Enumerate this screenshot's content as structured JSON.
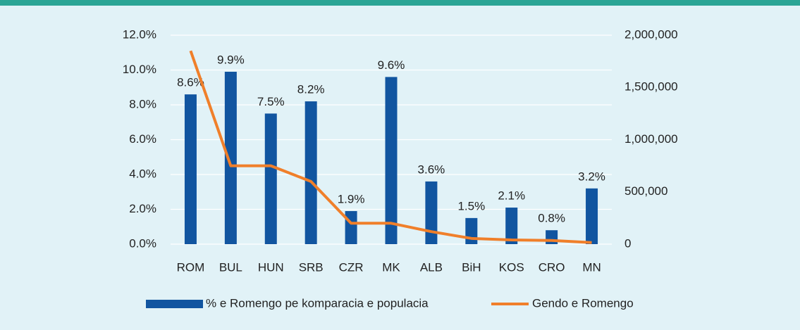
{
  "chart_data": {
    "type": "bar_line",
    "categories": [
      "ROM",
      "BUL",
      "HUN",
      "SRB",
      "CZR",
      "MK",
      "ALB",
      "BiH",
      "KOS",
      "CRO",
      "MN"
    ],
    "series": [
      {
        "name": "% e Romengo pe komparacia e populacia",
        "type": "bar",
        "color": "#1155a0",
        "values": [
          8.6,
          9.9,
          7.5,
          8.2,
          1.9,
          9.6,
          3.6,
          1.5,
          2.1,
          0.8,
          3.2
        ],
        "value_labels": [
          "8.6%",
          "9.9%",
          "7.5%",
          "8.2%",
          "1.9%",
          "9.6%",
          "3.6%",
          "1.5%",
          "2.1%",
          "0.8%",
          "3.2%"
        ]
      },
      {
        "name": "Gendo e Romengo",
        "type": "line",
        "axis": "y2",
        "color": "#f07f2a",
        "values": [
          1850000,
          750000,
          750000,
          600000,
          200000,
          200000,
          120000,
          55000,
          40000,
          35000,
          15000
        ]
      }
    ],
    "ylim": [
      0,
      12
    ],
    "yticks": [
      {
        "value": 0,
        "label": "0.0%"
      },
      {
        "value": 2,
        "label": "2.0%"
      },
      {
        "value": 4,
        "label": "4.0%"
      },
      {
        "value": 6,
        "label": "6.0%"
      },
      {
        "value": 8,
        "label": "8.0%"
      },
      {
        "value": 10,
        "label": "10.0%"
      },
      {
        "value": 12,
        "label": "12.0%"
      }
    ],
    "y2lim": [
      0,
      2000000
    ],
    "y2ticks": [
      0,
      {
        "value": 500000,
        "label": "500,000"
      },
      {
        "value": 1000000,
        "label": "1,000,000"
      },
      {
        "value": 1500000,
        "label": "1,500,000"
      },
      {
        "value": 2000000,
        "label": "2,000,000"
      }
    ],
    "grid": true,
    "legend": "bottom"
  }
}
